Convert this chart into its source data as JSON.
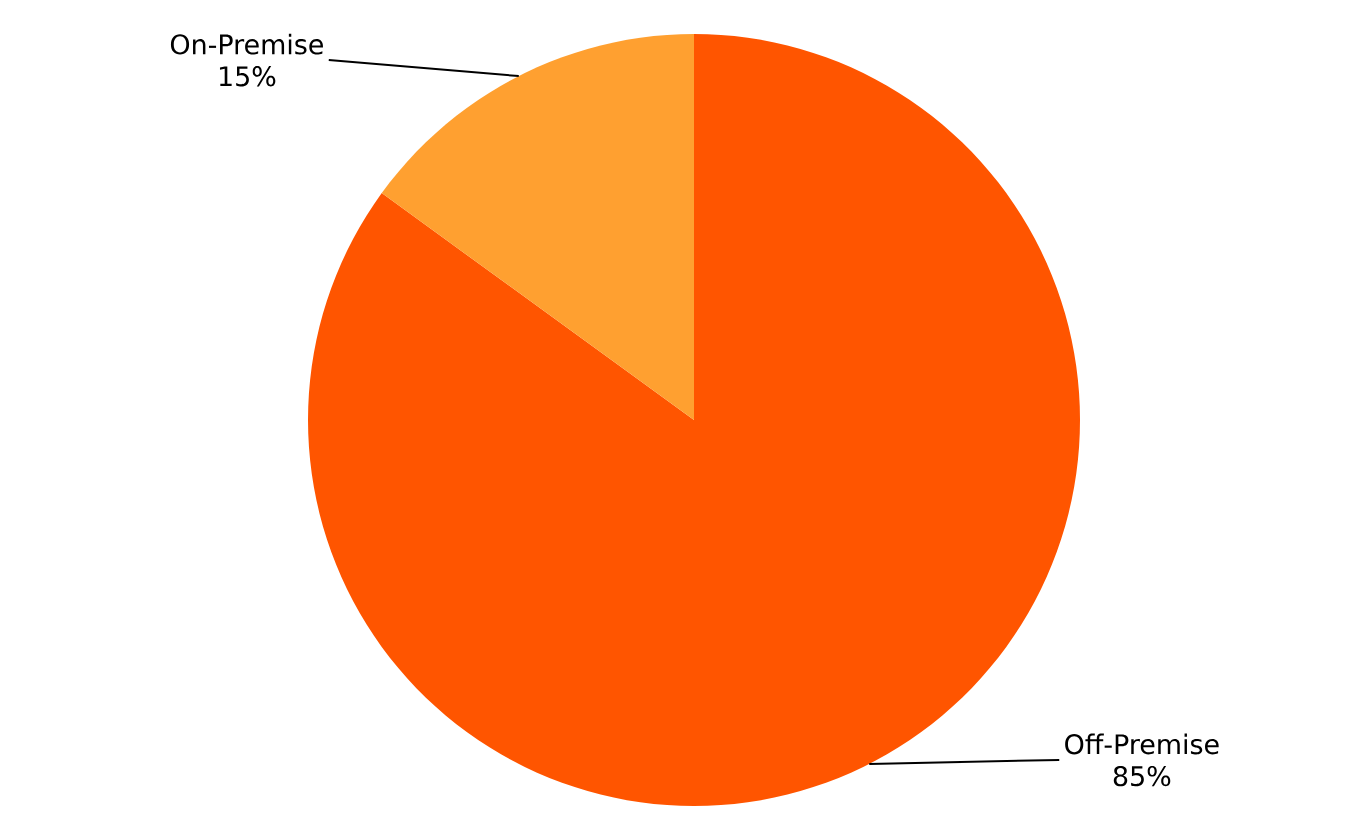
{
  "chart_data": {
    "type": "pie",
    "categories": [
      "Off-Premise",
      "On-Premise"
    ],
    "values": [
      85,
      15
    ],
    "colors": [
      "#ff5500",
      "#ffa030"
    ],
    "value_labels": [
      "85%",
      "15%"
    ]
  }
}
